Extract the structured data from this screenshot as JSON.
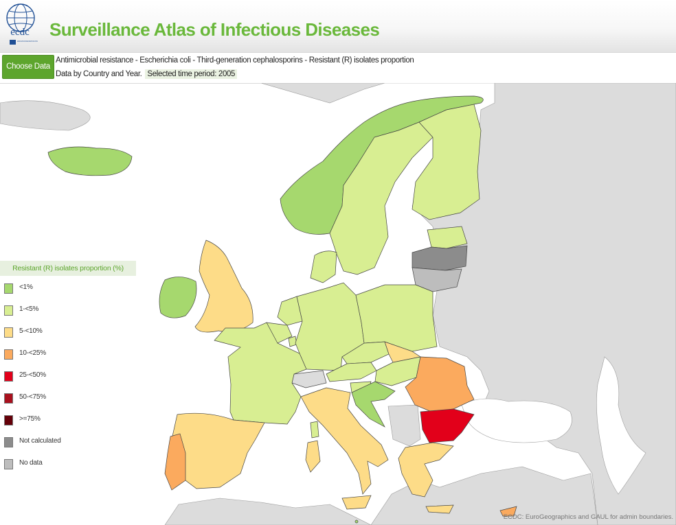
{
  "header": {
    "logo_text": "ecdc",
    "logo_subtext": "EUROPEAN CENTRE FOR DISEASE PREVENTION AND CONTROL",
    "title": "Surveillance Atlas of Infectious Diseases"
  },
  "toolbar": {
    "choose_data_label": "Choose Data",
    "dataset_title": "Antimicrobial resistance - Escherichia coli - Third-generation cephalosporins - Resistant (R) isolates proportion",
    "data_by": "Data by Country and Year.",
    "period_label": "Selected time period: 2005"
  },
  "legend": {
    "title": "Resistant (R) isolates proportion (%)",
    "items": [
      {
        "label": "<1%",
        "color": "#a6d86e"
      },
      {
        "label": "1-<5%",
        "color": "#d8ee92"
      },
      {
        "label": "5-<10%",
        "color": "#fddc88"
      },
      {
        "label": "10-<25%",
        "color": "#fbaa5e"
      },
      {
        "label": "25-<50%",
        "color": "#e2001a"
      },
      {
        "label": "50-<75%",
        "color": "#a9101d"
      },
      {
        "label": ">=75%",
        "color": "#640009"
      },
      {
        "label": "Not calculated",
        "color": "#8c8c8c"
      },
      {
        "label": "No data",
        "color": "#bdbdbd"
      }
    ]
  },
  "colors": {
    "sea": "#ffffff",
    "non_eu_land": "#dcdcdc",
    "border": "#444444"
  },
  "map": {
    "attribution": "ECDC: EuroGeographics and GAUL for admin boundaries."
  }
}
